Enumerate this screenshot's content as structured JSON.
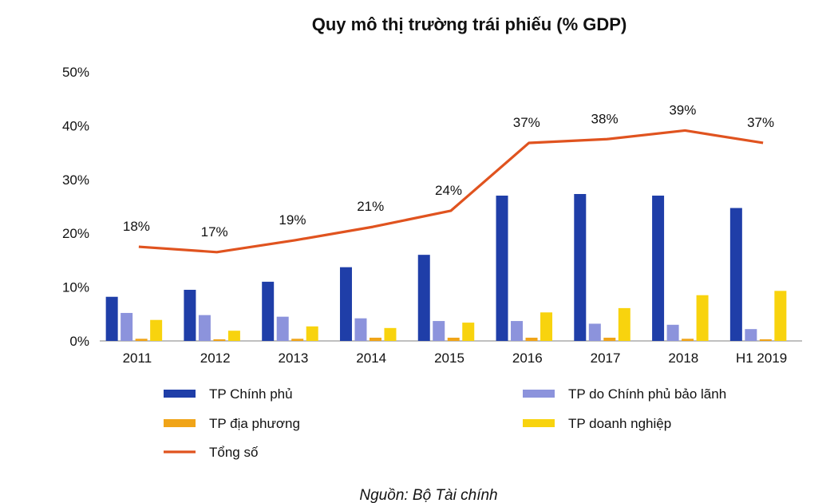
{
  "title": "Quy mô thị trường trái phiếu (% GDP)",
  "source": "Nguồn: Bộ Tài chính",
  "chart_data": {
    "type": "bar",
    "title": "Quy mô thị trường trái phiếu (% GDP)",
    "xlabel": "",
    "ylabel": "",
    "ylim": [
      0,
      50
    ],
    "yticks": [
      0,
      10,
      20,
      30,
      40,
      50
    ],
    "ytick_labels": [
      "0%",
      "10%",
      "20%",
      "30%",
      "40%",
      "50%"
    ],
    "categories": [
      "2011",
      "2012",
      "2013",
      "2014",
      "2015",
      "2016",
      "2017",
      "2018",
      "H1 2019"
    ],
    "series": [
      {
        "name": "TP Chính phủ",
        "type": "bar",
        "color": "#1f3ea8",
        "values": [
          8.2,
          9.5,
          11.0,
          13.7,
          16.0,
          27.0,
          27.3,
          27.0,
          24.7
        ]
      },
      {
        "name": "TP do Chính phủ bảo lãnh",
        "type": "bar",
        "color": "#8c93dc",
        "values": [
          5.2,
          4.8,
          4.5,
          4.2,
          3.7,
          3.7,
          3.2,
          3.0,
          2.2
        ]
      },
      {
        "name": "TP địa phương",
        "type": "bar",
        "color": "#f0a418",
        "values": [
          0.4,
          0.3,
          0.4,
          0.6,
          0.6,
          0.6,
          0.6,
          0.4,
          0.3
        ]
      },
      {
        "name": "TP doanh nghiệp",
        "type": "bar",
        "color": "#f8d30e",
        "values": [
          3.9,
          1.9,
          2.7,
          2.4,
          3.4,
          5.3,
          6.1,
          8.5,
          9.3
        ]
      },
      {
        "name": "Tổng số",
        "type": "line",
        "color": "#e0531f",
        "values": [
          17.5,
          16.5,
          18.7,
          21.2,
          24.2,
          36.8,
          37.5,
          39.1,
          36.8
        ],
        "labels": [
          "18%",
          "17%",
          "19%",
          "21%",
          "24%",
          "37%",
          "38%",
          "39%",
          "37%"
        ]
      }
    ],
    "legend": {
      "placement": "bottom",
      "entries": [
        "TP Chính phủ",
        "TP do Chính phủ bảo lãnh",
        "TP địa phương",
        "TP doanh nghiệp",
        "Tổng số"
      ]
    },
    "grid": false
  }
}
